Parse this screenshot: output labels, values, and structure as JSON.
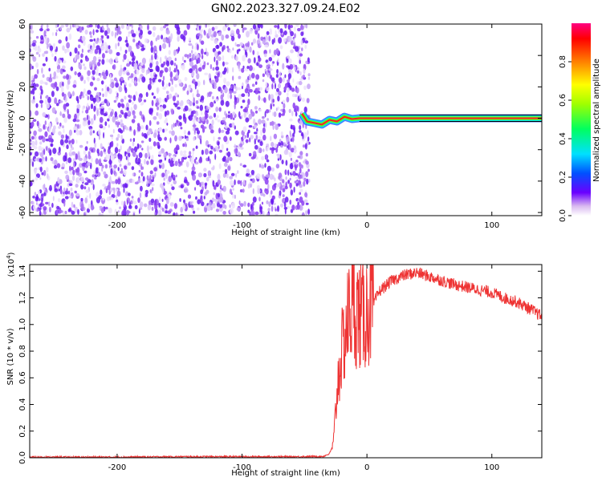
{
  "title": "GN02.2023.327.09.24.E02",
  "chart_data": [
    {
      "type": "heatmap",
      "xlabel": "Height of straight line (km)",
      "ylabel": "Frequency (Hz)",
      "xlim": [
        -270,
        140
      ],
      "ylim": [
        -62,
        60
      ],
      "x_ticks": [
        -200,
        -100,
        0,
        100
      ],
      "y_ticks": [
        -60,
        -40,
        -20,
        0,
        20,
        40,
        60
      ],
      "noise_region_x": [
        -270,
        -50
      ],
      "signal_line": {
        "y": 0,
        "x_start": -52,
        "x_end": 140,
        "points": [
          {
            "x": -52,
            "y": 3
          },
          {
            "x": -48,
            "y": -2
          },
          {
            "x": -42,
            "y": -3
          },
          {
            "x": -36,
            "y": -4
          },
          {
            "x": -30,
            "y": -1
          },
          {
            "x": -24,
            "y": -2
          },
          {
            "x": -18,
            "y": 1
          },
          {
            "x": -12,
            "y": -0.5
          },
          {
            "x": -6,
            "y": 0
          },
          {
            "x": 140,
            "y": 0
          }
        ]
      },
      "colorbar": {
        "label": "Normalized spectral amplitude",
        "ticks": [
          "0.0",
          "0.2",
          "0.4",
          "0.6",
          "0.8"
        ],
        "range": [
          0,
          1
        ]
      }
    },
    {
      "type": "line",
      "xlabel": "Height of straight line (km)",
      "ylabel": "SNR (10 * v/v)",
      "y_multiplier_label": "(x10",
      "y_multiplier_exp": "4",
      "xlim": [
        -270,
        140
      ],
      "ylim": [
        0,
        1.45
      ],
      "x_ticks": [
        -200,
        -100,
        0,
        100
      ],
      "y_ticks": [
        "0.0",
        "0.2",
        "0.4",
        "0.6",
        "0.8",
        "1.0",
        "1.2",
        "1.4"
      ],
      "series": [
        {
          "color": "#ee3333",
          "x": [
            -270,
            -250,
            -200,
            -150,
            -100,
            -60,
            -35,
            -30,
            -27,
            -25,
            -23,
            -20,
            -18,
            -15,
            -12,
            -8,
            -4,
            0,
            5,
            10,
            20,
            30,
            40,
            50,
            60,
            70,
            80,
            90,
            100,
            110,
            120,
            130,
            140
          ],
          "y": [
            0.005,
            0.005,
            0.005,
            0.008,
            0.008,
            0.008,
            0.01,
            0.03,
            0.1,
            0.35,
            0.6,
            0.8,
            0.9,
            1.05,
            1.15,
            1.1,
            1.05,
            1.1,
            1.15,
            1.25,
            1.33,
            1.37,
            1.39,
            1.36,
            1.33,
            1.3,
            1.28,
            1.26,
            1.24,
            1.2,
            1.17,
            1.12,
            1.06
          ]
        }
      ]
    }
  ]
}
